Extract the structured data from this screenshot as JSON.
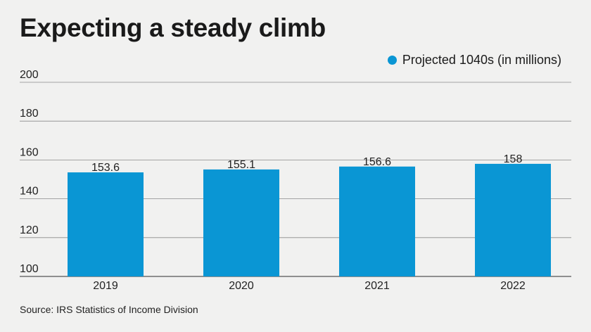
{
  "chart_data": {
    "type": "bar",
    "title": "Expecting a steady climb",
    "categories": [
      "2019",
      "2020",
      "2021",
      "2022"
    ],
    "series": [
      {
        "name": "Projected 1040s (in millions)",
        "values": [
          153.6,
          155.1,
          156.6,
          158
        ],
        "labels": [
          "153.6",
          "155.1",
          "156.6",
          "158"
        ],
        "color": "#0a96d4"
      }
    ],
    "ylim": [
      100,
      200
    ],
    "yticks": [
      200,
      180,
      160,
      140,
      120,
      100
    ],
    "grid": true,
    "legend_position": "top-right",
    "source": "Source: IRS Statistics of Income Division"
  }
}
